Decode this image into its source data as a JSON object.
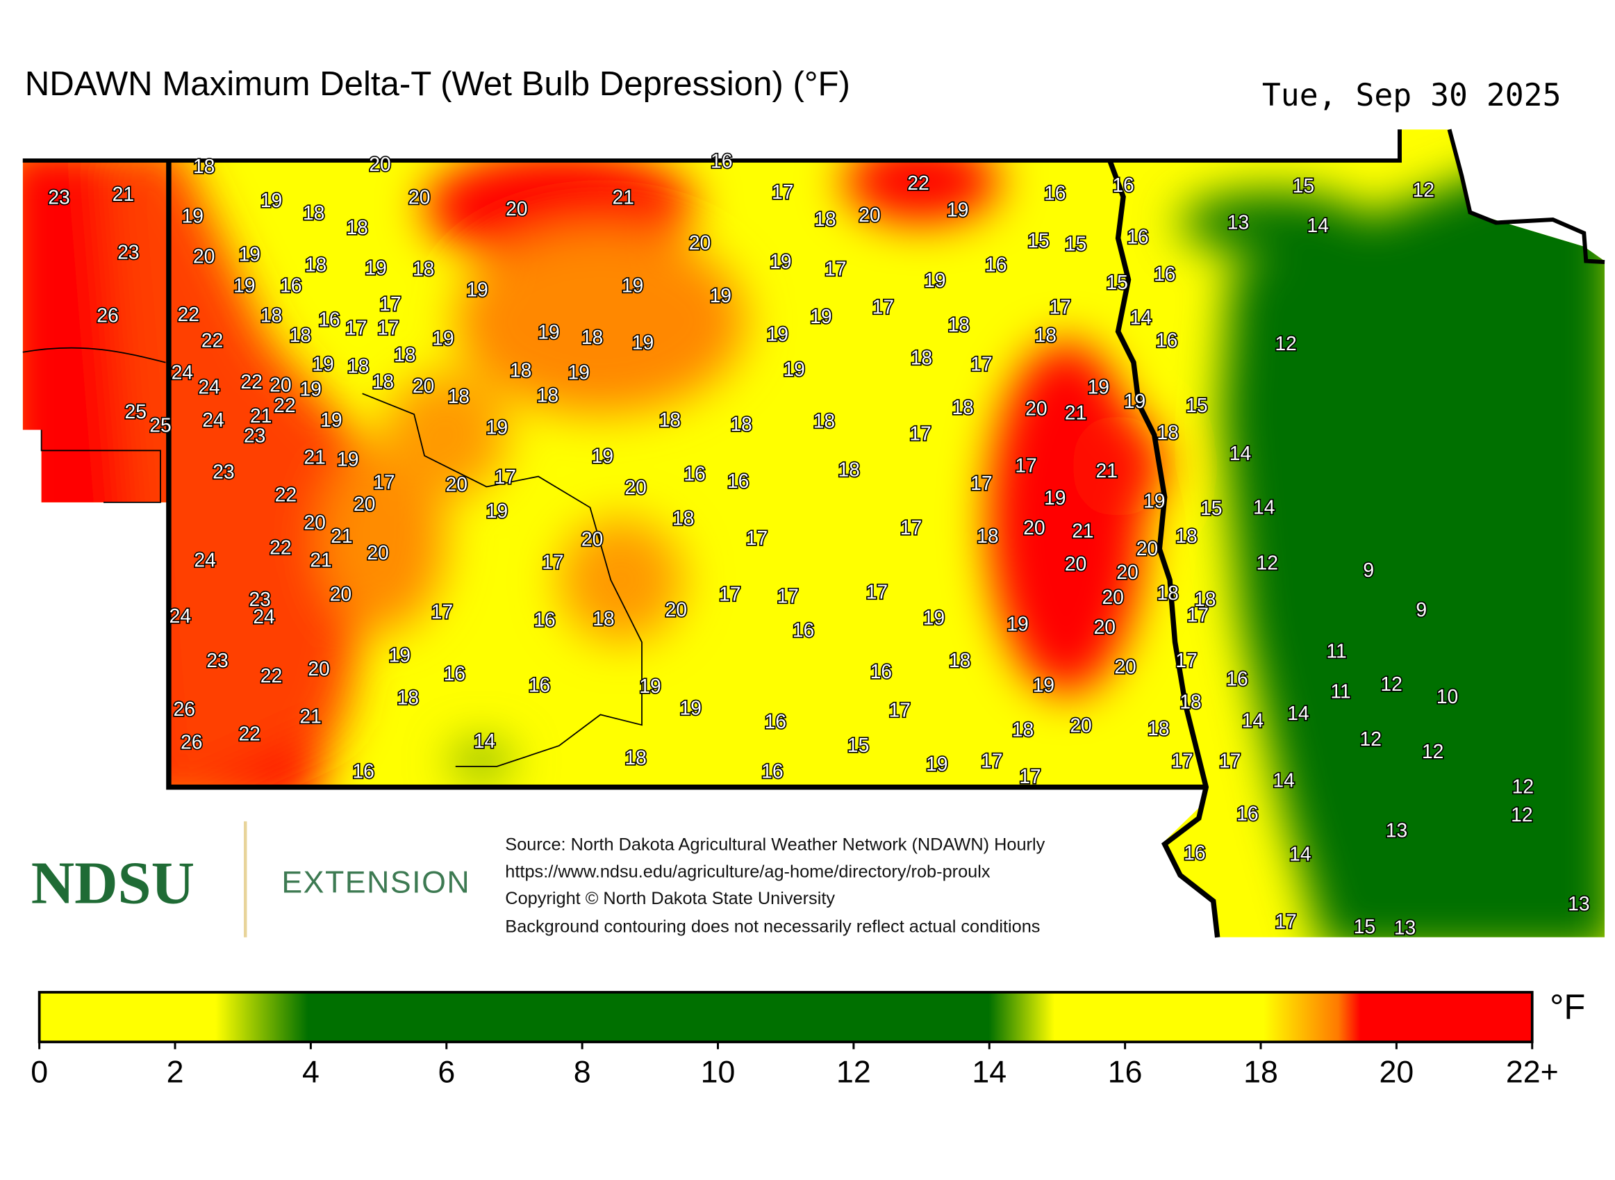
{
  "header": {
    "title": "NDAWN Maximum Delta-T (Wet Bulb Depression) (°F)",
    "date": "Tue, Sep 30 2025"
  },
  "stations": [
    18,
    20,
    16,
    23,
    21,
    19,
    19,
    18,
    20,
    18,
    20,
    21,
    17,
    22,
    16,
    16,
    15,
    12,
    18,
    20,
    19,
    13,
    14,
    23,
    20,
    19,
    20,
    15,
    15,
    16,
    18,
    19,
    18,
    19,
    17,
    16,
    16,
    15,
    19,
    16,
    19,
    19,
    19,
    19,
    26,
    22,
    18,
    17,
    16,
    17,
    17,
    19,
    17,
    17,
    14,
    22,
    18,
    19,
    19,
    18,
    19,
    19,
    18,
    18,
    16,
    12,
    24,
    19,
    18,
    18,
    18,
    19,
    19,
    18,
    17,
    24,
    22,
    20,
    19,
    18,
    20,
    18,
    18,
    19,
    19,
    25,
    25,
    24,
    21,
    22,
    23,
    19,
    19,
    18,
    18,
    18,
    18,
    20,
    21,
    15,
    17,
    18,
    21,
    19,
    19,
    14,
    23,
    17,
    20,
    17,
    20,
    16,
    16,
    18,
    17,
    17,
    21,
    22,
    20,
    19,
    19,
    19,
    15,
    14,
    20,
    21,
    18,
    17,
    18,
    20,
    21,
    18,
    22,
    20,
    20,
    17,
    20,
    24,
    21,
    17,
    20,
    20,
    12,
    9,
    23,
    20,
    17,
    17,
    17,
    20,
    18,
    18,
    24,
    24,
    17,
    16,
    18,
    20,
    19,
    19,
    20,
    17,
    9,
    16,
    23,
    19,
    11,
    18,
    17,
    22,
    20,
    16,
    16,
    20,
    16,
    16,
    19,
    19,
    11,
    12,
    10,
    18,
    18,
    26,
    21,
    19,
    17,
    14,
    14,
    16,
    18,
    20,
    18,
    26,
    22,
    14,
    15,
    12,
    12,
    18,
    19,
    17,
    17,
    17,
    16,
    16,
    17,
    14,
    12,
    16,
    12,
    13,
    16,
    14,
    17,
    15,
    13,
    13
  ],
  "logo": {
    "name": "NDSU",
    "unit": "EXTENSION"
  },
  "credits": [
    "Source: North Dakota Agricultural Weather Network (NDAWN) Hourly",
    "https://www.ndsu.edu/agriculture/ag-home/directory/rob-proulx",
    "Copyright © North Dakota State University",
    "Background contouring does not necessarily reflect actual conditions"
  ],
  "legend": {
    "unit": "°F",
    "ticks": [
      0,
      2,
      4,
      6,
      8,
      10,
      12,
      14,
      16,
      18,
      20,
      {
        "value": 22,
        "label": "22+"
      }
    ]
  }
}
